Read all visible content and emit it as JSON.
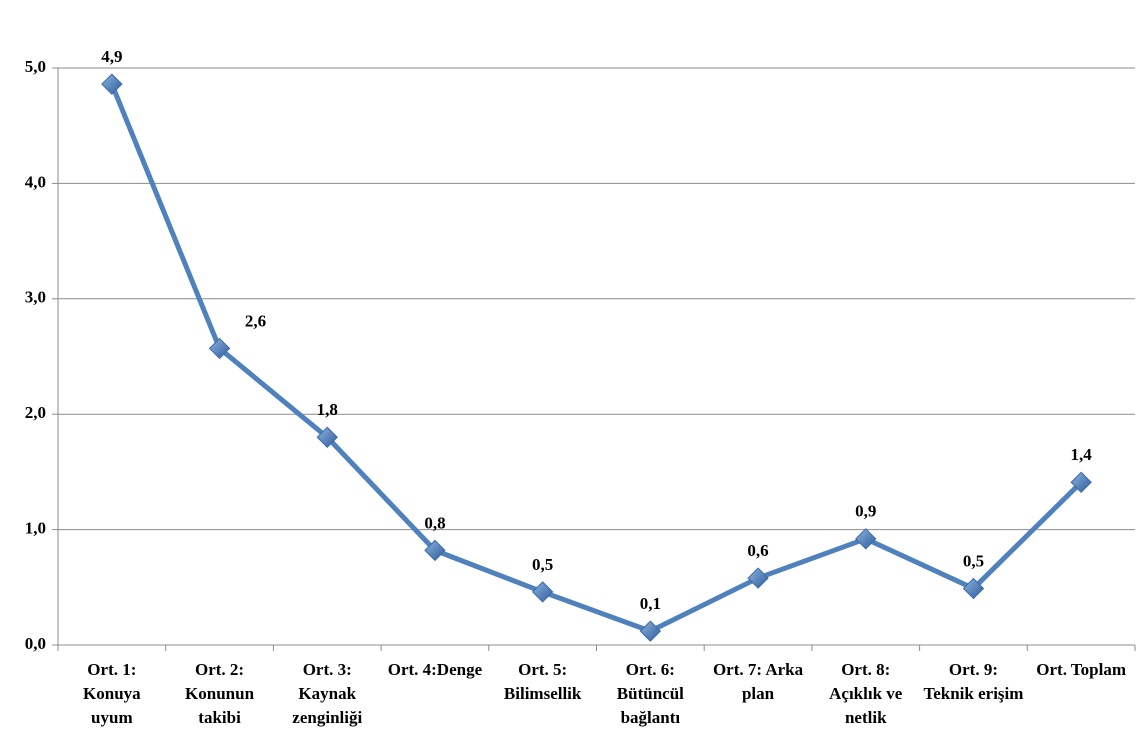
{
  "chart_data": {
    "type": "line",
    "categories": [
      "Ort. 1: Konuya uyum",
      "Ort. 2: Konunun takibi",
      "Ort. 3: Kaynak zenginliği",
      "Ort. 4:Denge",
      "Ort. 5: Bilimsellik",
      "Ort. 6: Bütüncül bağlantı",
      "Ort. 7: Arka plan",
      "Ort. 8: Açıklık ve netlik",
      "Ort. 9: Teknik erişim",
      "Ort. Toplam"
    ],
    "values": [
      4.86,
      2.57,
      1.8,
      0.82,
      0.46,
      0.12,
      0.58,
      0.92,
      0.49,
      1.41
    ],
    "value_labels": [
      "4,9",
      "2,6",
      "1,8",
      "0,8",
      "0,5",
      "0,1",
      "0,6",
      "0,9",
      "0,5",
      "1,4"
    ],
    "color": "#4f81bd",
    "ylim": [
      0,
      5
    ],
    "yticks": [
      {
        "value": 0,
        "label": "0,0"
      },
      {
        "value": 1,
        "label": "1,0"
      },
      {
        "value": 2,
        "label": "2,0"
      },
      {
        "value": 3,
        "label": "3,0"
      },
      {
        "value": 4,
        "label": "4,0"
      },
      {
        "value": 5,
        "label": "5,0"
      }
    ],
    "grid": true
  }
}
